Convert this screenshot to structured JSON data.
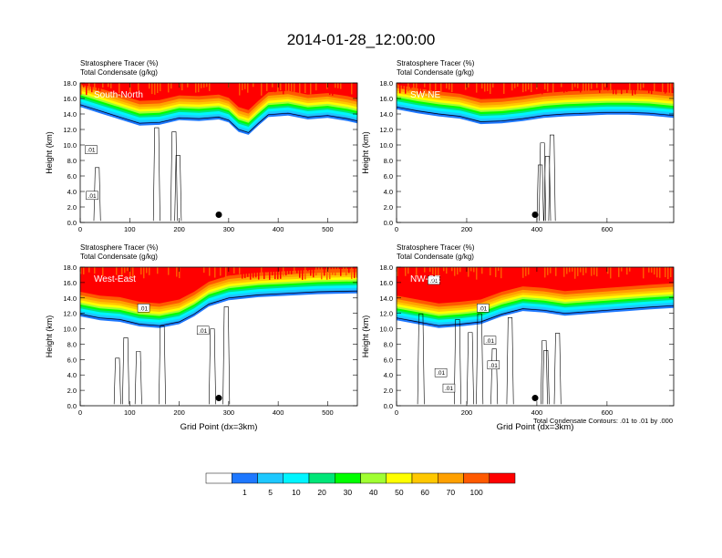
{
  "figure": {
    "title": "2014-01-28_12:00:00",
    "footnote": "Total Condensate Contours: .01 to .01 by .000"
  },
  "colors": {
    "bins": [
      "#ffffff",
      "#1e78ff",
      "#1ec8ff",
      "#00f5ff",
      "#00e678",
      "#00ff00",
      "#a0ff32",
      "#ffff00",
      "#ffc800",
      "#ffa000",
      "#ff5a00",
      "#ff0000"
    ],
    "contour": "#000000"
  },
  "colorbar": {
    "labels": [
      "1",
      "5",
      "10",
      "20",
      "30",
      "40",
      "50",
      "60",
      "70",
      "100"
    ]
  },
  "chart_data": [
    {
      "type": "contour",
      "label": "South-North",
      "title_lines": [
        "Stratosphere Tracer   (%)",
        "Total Condensate   (g/kg)"
      ],
      "ylabel": "Height (km)",
      "xlabel": "",
      "xlim": [
        0,
        560
      ],
      "ylim": [
        0,
        18
      ],
      "xticks": [
        0,
        100,
        200,
        300,
        400,
        500
      ],
      "yticks": [
        "0.0",
        "2.0",
        "4.0",
        "6.0",
        "8.0",
        "10.0",
        "12.0",
        "14.0",
        "16.0",
        "18.0"
      ],
      "marker": {
        "x": 280,
        "y": 1.0
      },
      "tropopause_km": [
        [
          0,
          15.8
        ],
        [
          40,
          15.0
        ],
        [
          80,
          14.2
        ],
        [
          120,
          13.4
        ],
        [
          160,
          13.5
        ],
        [
          200,
          14.1
        ],
        [
          240,
          14.0
        ],
        [
          280,
          14.2
        ],
        [
          300,
          13.8
        ],
        [
          320,
          12.6
        ],
        [
          340,
          12.2
        ],
        [
          360,
          13.4
        ],
        [
          380,
          14.5
        ],
        [
          420,
          14.7
        ],
        [
          460,
          14.2
        ],
        [
          500,
          14.4
        ],
        [
          540,
          14.0
        ],
        [
          560,
          13.7
        ]
      ],
      "contour_labels": [
        {
          "x": 12,
          "y": 9.1,
          "text": ".01"
        },
        {
          "x": 14,
          "y": 3.2,
          "text": ".01"
        }
      ]
    },
    {
      "type": "contour",
      "label": "SW-NE",
      "title_lines": [
        "Stratosphere Tracer   (%)",
        "Total Condensate   (g/kg)"
      ],
      "ylabel": "Height (km)",
      "xlabel": "",
      "xlim": [
        0,
        790
      ],
      "ylim": [
        0,
        18
      ],
      "xticks": [
        0,
        200,
        400,
        600
      ],
      "yticks": [
        "0.0",
        "2.0",
        "4.0",
        "6.0",
        "8.0",
        "10.0",
        "12.0",
        "14.0",
        "16.0",
        "18.0"
      ],
      "marker": {
        "x": 395,
        "y": 1.0
      },
      "tropopause_km": [
        [
          0,
          15.5
        ],
        [
          60,
          15.0
        ],
        [
          120,
          14.6
        ],
        [
          180,
          14.3
        ],
        [
          240,
          13.6
        ],
        [
          300,
          13.7
        ],
        [
          360,
          14.0
        ],
        [
          420,
          14.4
        ],
        [
          480,
          14.6
        ],
        [
          540,
          14.7
        ],
        [
          600,
          14.8
        ],
        [
          660,
          14.8
        ],
        [
          720,
          14.7
        ],
        [
          790,
          14.4
        ]
      ],
      "contour_labels": []
    },
    {
      "type": "contour",
      "label": "West-East",
      "title_lines": [
        "Stratosphere Tracer   (%)",
        "Total Condensate   (g/kg)"
      ],
      "ylabel": "Height (km)",
      "xlabel": "Grid Point (dx=3km)",
      "xlim": [
        0,
        560
      ],
      "ylim": [
        0,
        18
      ],
      "xticks": [
        0,
        100,
        200,
        300,
        400,
        500
      ],
      "yticks": [
        "0.0",
        "2.0",
        "4.0",
        "6.0",
        "8.0",
        "10.0",
        "12.0",
        "14.0",
        "16.0",
        "18.0"
      ],
      "marker": {
        "x": 280,
        "y": 1.0
      },
      "tropopause_km": [
        [
          0,
          12.5
        ],
        [
          40,
          12.0
        ],
        [
          80,
          11.8
        ],
        [
          120,
          11.2
        ],
        [
          160,
          11.0
        ],
        [
          200,
          11.5
        ],
        [
          230,
          12.5
        ],
        [
          260,
          13.8
        ],
        [
          300,
          14.6
        ],
        [
          360,
          15.0
        ],
        [
          420,
          15.2
        ],
        [
          480,
          15.4
        ],
        [
          560,
          15.5
        ]
      ],
      "contour_labels": [
        {
          "x": 118,
          "y": 12.4,
          "text": ".01"
        },
        {
          "x": 238,
          "y": 9.5,
          "text": ".01"
        }
      ]
    },
    {
      "type": "contour",
      "label": "NW-SE",
      "title_lines": [
        "Stratosphere Tracer   (%)",
        "Total Condensate   (g/kg)"
      ],
      "ylabel": "Height (km)",
      "xlabel": "Grid Point (dx=3km)",
      "xlim": [
        0,
        790
      ],
      "ylim": [
        0,
        18
      ],
      "xticks": [
        0,
        200,
        400,
        600
      ],
      "yticks": [
        "0.0",
        "2.0",
        "4.0",
        "6.0",
        "8.0",
        "10.0",
        "12.0",
        "14.0",
        "16.0",
        "18.0"
      ],
      "marker": {
        "x": 395,
        "y": 1.0
      },
      "tropopause_km": [
        [
          0,
          12.0
        ],
        [
          60,
          11.5
        ],
        [
          120,
          11.0
        ],
        [
          180,
          11.2
        ],
        [
          240,
          11.5
        ],
        [
          300,
          12.5
        ],
        [
          360,
          13.2
        ],
        [
          420,
          13.0
        ],
        [
          480,
          12.6
        ],
        [
          540,
          12.8
        ],
        [
          600,
          13.0
        ],
        [
          660,
          13.2
        ],
        [
          720,
          13.4
        ],
        [
          790,
          13.6
        ]
      ],
      "contour_labels": [
        {
          "x": 112,
          "y": 4.0,
          "text": ".01"
        },
        {
          "x": 135,
          "y": 2.0,
          "text": ".01"
        },
        {
          "x": 232,
          "y": 12.4,
          "text": ".01"
        },
        {
          "x": 252,
          "y": 8.2,
          "text": ".01"
        },
        {
          "x": 262,
          "y": 5.0,
          "text": ".01"
        },
        {
          "x": 92,
          "y": 16.0,
          "text": ".01"
        }
      ]
    }
  ]
}
